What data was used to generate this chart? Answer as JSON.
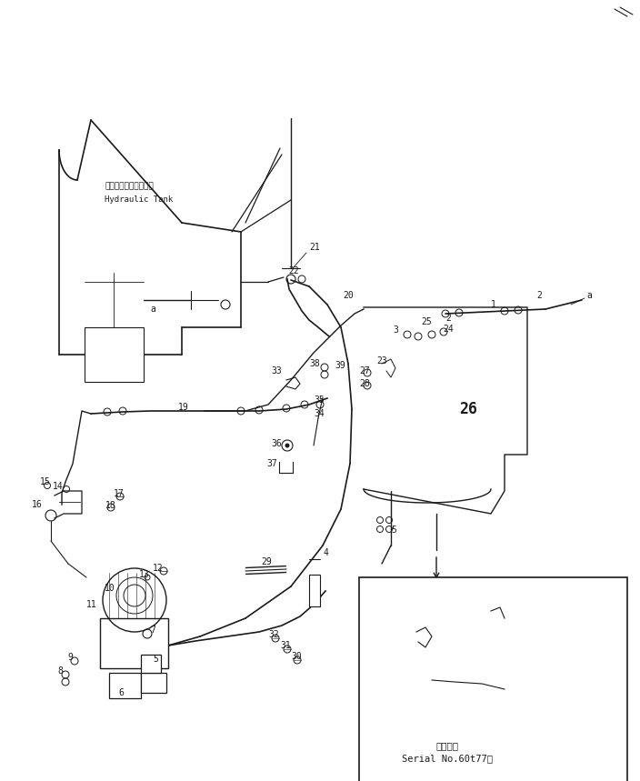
{
  "bg_color": "#ffffff",
  "line_color": "#1a1a1a",
  "fig_width": 7.04,
  "fig_height": 8.59,
  "hydraulic_tank_label_jp": "ハイドロリックタンク",
  "hydraulic_tank_label_en": "Hydraulic Tank",
  "serial_label_jp": "適用号機",
  "serial_label_en": "Serial No.60t77～"
}
